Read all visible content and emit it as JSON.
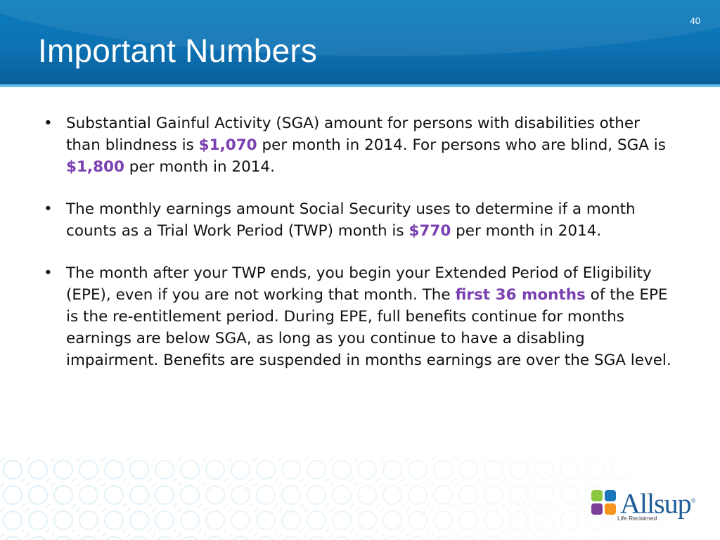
{
  "slide": {
    "title": "Important Numbers",
    "page_number": "40"
  },
  "bullets": [
    {
      "text_1": "Substantial Gainful Activity (SGA) amount for persons with disabilities other than blindness is ",
      "highlight_1": "$1,070",
      "text_2": " per month in 2014. For persons who are blind, SGA is ",
      "highlight_2": "$1,800",
      "text_3": " per month in 2014."
    },
    {
      "text_1": "The monthly earnings amount Social Security uses to determine if a month counts as a Trial Work Period (TWP) month is ",
      "highlight_1": "$770",
      "text_2": " per month in 2014."
    },
    {
      "text_1": "The month after your TWP ends, you begin your Extended Period of Eligibility (EPE), even if you are not working that month. The ",
      "highlight_1": "first 36 months",
      "text_2": " of the EPE is the re-entitlement period. During EPE, full benefits continue for months earnings are below SGA, as long as you continue to have a disabling impairment. Benefits are suspended in months earnings are over the SGA level."
    }
  ],
  "bullet_symbol": "•",
  "logo": {
    "wordmark": "Allsup",
    "trademark": "®",
    "tagline": "Life Reclaimed"
  },
  "colors": {
    "header_blue": "#0d72b3",
    "header_rule": "#6cc3ea",
    "highlight_purple": "#7a3fb0",
    "logo_blue": "#1d5c96"
  }
}
